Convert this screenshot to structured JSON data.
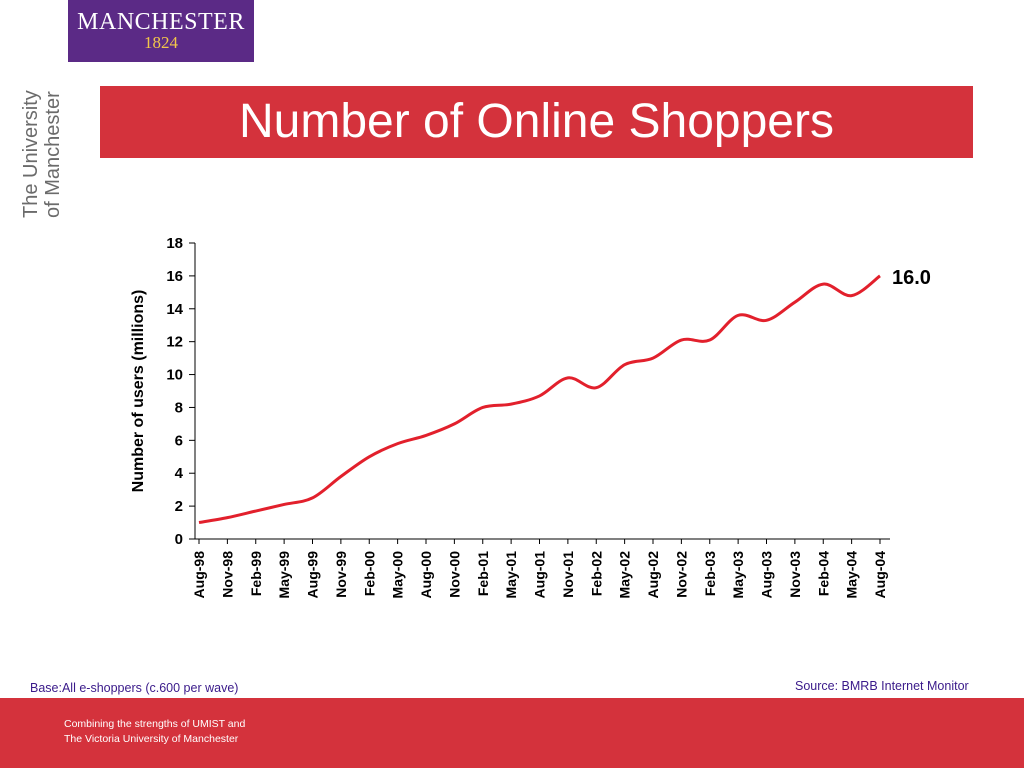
{
  "logo": {
    "name": "MANCHESTER",
    "year": "1824"
  },
  "university": {
    "line1": "The University",
    "line2": "of Manchester"
  },
  "slide_title": "Number of Online Shoppers",
  "notes": {
    "base": "Base:All e-shoppers (c.600 per wave)",
    "source": "Source: BMRB Internet Monitor"
  },
  "footer": {
    "line1": "Combining the strengths of UMIST and",
    "line2": "The Victoria University of Manchester"
  },
  "colors": {
    "brand_purple": "#5b2a86",
    "brand_red": "#d4323c",
    "series": "#e2202c"
  },
  "chart_data": {
    "type": "line",
    "title": "",
    "xlabel": "",
    "ylabel": "Number of users (millions)",
    "ylim": [
      0,
      18
    ],
    "yticks": [
      0,
      2,
      4,
      6,
      8,
      10,
      12,
      14,
      16,
      18
    ],
    "grid": false,
    "categories": [
      "Aug-98",
      "Nov-98",
      "Feb-99",
      "May-99",
      "Aug-99",
      "Nov-99",
      "Feb-00",
      "May-00",
      "Aug-00",
      "Nov-00",
      "Feb-01",
      "May-01",
      "Aug-01",
      "Nov-01",
      "Feb-02",
      "May-02",
      "Aug-02",
      "Nov-02",
      "Feb-03",
      "May-03",
      "Aug-03",
      "Nov-03",
      "Feb-04",
      "May-04",
      "Aug-04"
    ],
    "series": [
      {
        "name": "",
        "values": [
          1.0,
          1.3,
          1.7,
          2.1,
          2.5,
          3.8,
          5.0,
          5.8,
          6.3,
          7.0,
          8.0,
          8.2,
          8.7,
          9.8,
          9.2,
          10.6,
          11.0,
          12.1,
          12.1,
          13.6,
          13.3,
          14.4,
          15.5,
          14.8,
          16.0
        ]
      }
    ],
    "end_label": "16.0"
  }
}
